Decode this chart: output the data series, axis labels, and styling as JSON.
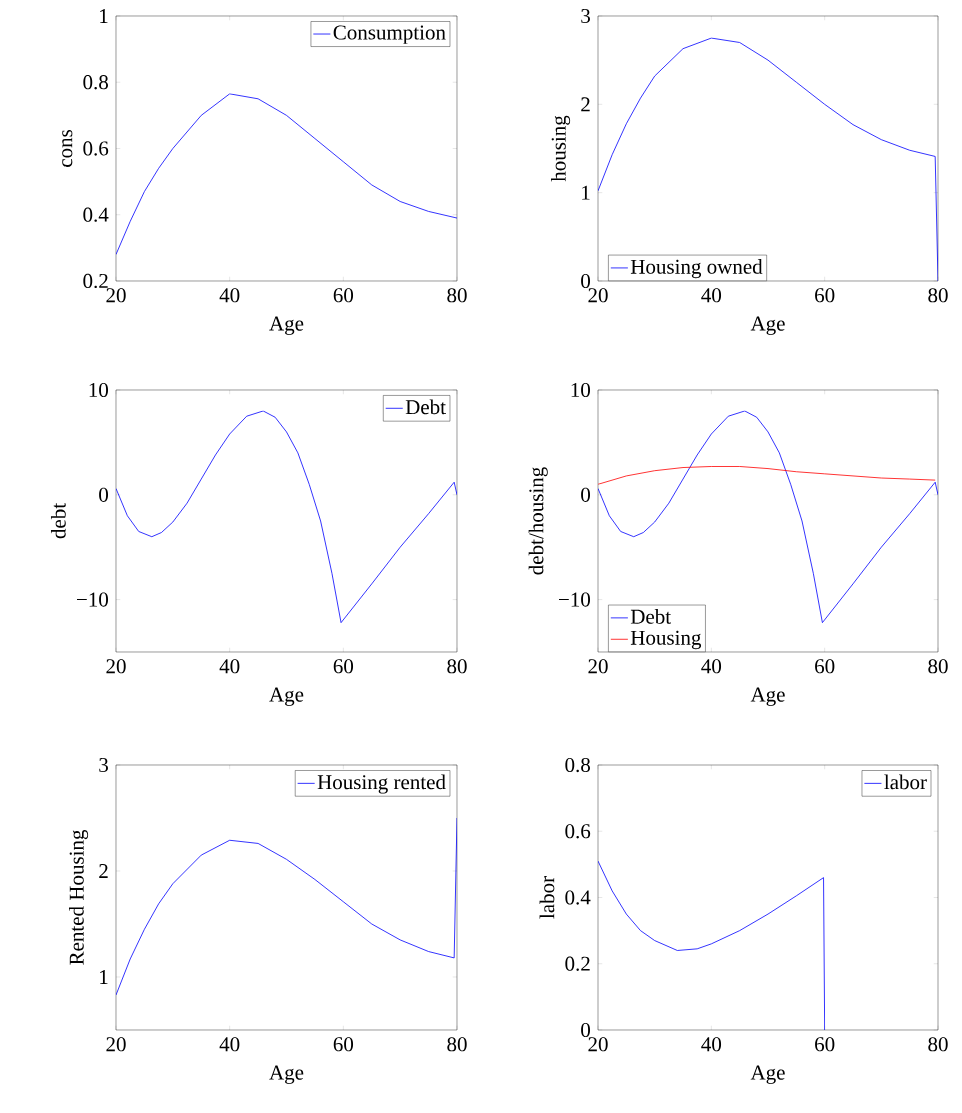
{
  "chart_data": [
    {
      "type": "line",
      "xlabel": "Age",
      "ylabel": "cons",
      "xlim": [
        20,
        80
      ],
      "ylim": [
        0.2,
        1
      ],
      "xticks": [
        20,
        40,
        60,
        80
      ],
      "yticks": [
        0.2,
        0.4,
        0.6,
        0.8,
        1
      ],
      "legend": "top right",
      "series": [
        {
          "name": "Consumption",
          "color": "#0000ff",
          "x": [
            20,
            22.5,
            25,
            27.5,
            30,
            35,
            40,
            45,
            50,
            55,
            60,
            65,
            70,
            75,
            80
          ],
          "values": [
            0.28,
            0.38,
            0.47,
            0.54,
            0.6,
            0.7,
            0.765,
            0.75,
            0.7,
            0.63,
            0.56,
            0.49,
            0.44,
            0.41,
            0.39
          ]
        }
      ]
    },
    {
      "type": "line",
      "xlabel": "Age",
      "ylabel": "housing",
      "xlim": [
        20,
        80
      ],
      "ylim": [
        0,
        3
      ],
      "xticks": [
        20,
        40,
        60,
        80
      ],
      "yticks": [
        0,
        1,
        2,
        3
      ],
      "legend": "bottom left",
      "series": [
        {
          "name": "Housing owned",
          "color": "#0000ff",
          "x": [
            20,
            22.5,
            25,
            27.5,
            30,
            35,
            40,
            45,
            50,
            55,
            60,
            65,
            70,
            75,
            79.5,
            80
          ],
          "values": [
            1.02,
            1.43,
            1.78,
            2.07,
            2.32,
            2.63,
            2.75,
            2.7,
            2.5,
            2.25,
            2.0,
            1.77,
            1.6,
            1.48,
            1.41,
            0
          ]
        }
      ]
    },
    {
      "type": "line",
      "xlabel": "Age",
      "ylabel": "debt",
      "xlim": [
        20,
        80
      ],
      "ylim": [
        -15,
        10
      ],
      "xticks": [
        20,
        40,
        60,
        80
      ],
      "yticks": [
        {
          "value": -10,
          "label": "−10"
        },
        0,
        10
      ],
      "legend": "top right",
      "series": [
        {
          "name": "Debt",
          "color": "#0000ff",
          "x": [
            20,
            22,
            24,
            26.3,
            28,
            30,
            32.5,
            35,
            37.5,
            40,
            43,
            45.9,
            48,
            50,
            52,
            54,
            56,
            58,
            59.6,
            65,
            70,
            75,
            79.5,
            80
          ],
          "values": [
            0.6,
            -2,
            -3.5,
            -4,
            -3.6,
            -2.6,
            -0.8,
            1.5,
            3.8,
            5.8,
            7.5,
            8,
            7.4,
            6,
            4,
            1,
            -2.5,
            -7.5,
            -12.2,
            -8.5,
            -5.0,
            -1.8,
            1.2,
            0
          ]
        }
      ]
    },
    {
      "type": "line",
      "xlabel": "Age",
      "ylabel": "debt/housing",
      "xlim": [
        20,
        80
      ],
      "ylim": [
        -15,
        10
      ],
      "xticks": [
        20,
        40,
        60,
        80
      ],
      "yticks": [
        {
          "value": -10,
          "label": "−10"
        },
        0,
        10
      ],
      "legend": "bottom left",
      "series": [
        {
          "name": "Debt",
          "color": "#0000ff",
          "x": [
            20,
            22,
            24,
            26.3,
            28,
            30,
            32.5,
            35,
            37.5,
            40,
            43,
            45.9,
            48,
            50,
            52,
            54,
            56,
            58,
            59.6,
            65,
            70,
            75,
            79.5,
            80
          ],
          "values": [
            0.6,
            -2,
            -3.5,
            -4,
            -3.6,
            -2.6,
            -0.8,
            1.5,
            3.8,
            5.8,
            7.5,
            8,
            7.4,
            6,
            4,
            1,
            -2.5,
            -7.5,
            -12.2,
            -8.5,
            -5.0,
            -1.8,
            1.2,
            0
          ]
        },
        {
          "name": "Housing",
          "color": "#ff0000",
          "x": [
            20,
            25,
            30,
            35,
            40,
            45,
            50,
            55,
            60,
            65,
            70,
            75,
            79.5
          ],
          "values": [
            1.0,
            1.8,
            2.3,
            2.6,
            2.7,
            2.7,
            2.5,
            2.2,
            2.0,
            1.8,
            1.6,
            1.5,
            1.4
          ]
        }
      ]
    },
    {
      "type": "line",
      "xlabel": "Age",
      "ylabel": "Rented Housing",
      "xlim": [
        20,
        80
      ],
      "ylim": [
        0.5,
        3
      ],
      "xticks": [
        20,
        40,
        60,
        80
      ],
      "yticks": [
        1,
        2,
        3
      ],
      "legend": "top right",
      "series": [
        {
          "name": "Housing rented",
          "color": "#0000ff",
          "x": [
            20,
            22.5,
            25,
            27.5,
            30,
            35,
            40,
            45,
            50,
            55,
            60,
            65,
            70,
            75,
            79.5,
            80
          ],
          "values": [
            0.83,
            1.17,
            1.45,
            1.69,
            1.88,
            2.15,
            2.29,
            2.26,
            2.11,
            1.92,
            1.71,
            1.5,
            1.35,
            1.24,
            1.18,
            2.5
          ]
        }
      ]
    },
    {
      "type": "line",
      "xlabel": "Age",
      "ylabel": "labor",
      "xlim": [
        20,
        80
      ],
      "ylim": [
        0,
        0.8
      ],
      "xticks": [
        20,
        40,
        60,
        80
      ],
      "yticks": [
        0,
        0.2,
        0.4,
        0.6,
        0.8
      ],
      "legend": "top right",
      "series": [
        {
          "name": "labor",
          "color": "#0000ff",
          "x": [
            20,
            22.5,
            25,
            27.5,
            30,
            34,
            37.5,
            40,
            45,
            50,
            55,
            59.8,
            60
          ],
          "values": [
            0.51,
            0.42,
            0.35,
            0.3,
            0.27,
            0.24,
            0.245,
            0.26,
            0.3,
            0.35,
            0.405,
            0.46,
            0
          ]
        }
      ]
    }
  ]
}
